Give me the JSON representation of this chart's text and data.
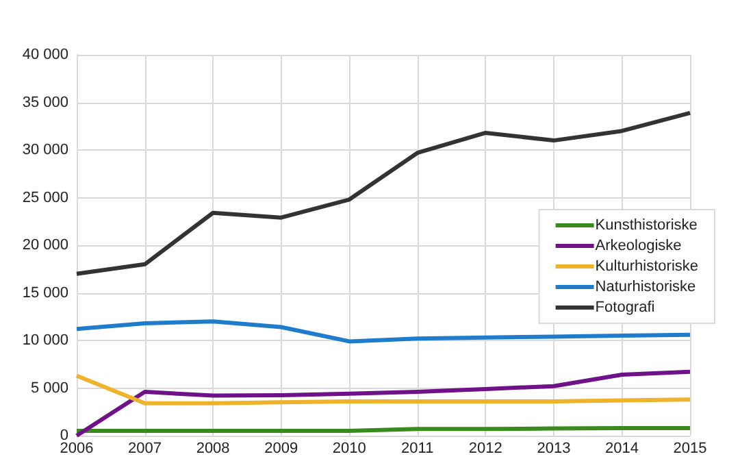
{
  "chart_data": {
    "type": "line",
    "categories": [
      "2006",
      "2007",
      "2008",
      "2009",
      "2010",
      "2011",
      "2012",
      "2013",
      "2014",
      "2015"
    ],
    "series": [
      {
        "name": "Kunsthistoriske",
        "color": "#3a8a1e",
        "values": [
          500,
          500,
          500,
          500,
          500,
          700,
          700,
          750,
          800,
          800
        ]
      },
      {
        "name": "Arkeologiske",
        "color": "#6f1289",
        "values": [
          0,
          4600,
          4200,
          4250,
          4400,
          4600,
          4900,
          5200,
          6400,
          6700
        ]
      },
      {
        "name": "Kulturhistoriske",
        "color": "#efb22b",
        "values": [
          6300,
          3400,
          3400,
          3500,
          3600,
          3600,
          3600,
          3600,
          3700,
          3800
        ]
      },
      {
        "name": "Naturhistoriske",
        "color": "#1f7ccc",
        "values": [
          11200,
          11800,
          12000,
          11400,
          9900,
          10200,
          10300,
          10400,
          10500,
          10600
        ]
      },
      {
        "name": "Fotografi",
        "color": "#333333",
        "values": [
          17000,
          18000,
          23400,
          22900,
          24800,
          29700,
          31800,
          31000,
          32000,
          33900
        ]
      }
    ],
    "ylim": [
      0,
      40000
    ],
    "yticks": [
      0,
      {
        "value": 5000,
        "label": "5 000"
      },
      {
        "value": 10000,
        "label": "10 000"
      },
      {
        "value": 15000,
        "label": "15 000"
      },
      {
        "value": 20000,
        "label": "20 000"
      },
      {
        "value": 25000,
        "label": "25 000"
      },
      {
        "value": 30000,
        "label": "30 000"
      },
      {
        "value": 35000,
        "label": "35 000"
      },
      {
        "value": 40000,
        "label": "40 000"
      }
    ],
    "grid": true,
    "legend": "right",
    "marker": "none",
    "line_style": "solid"
  }
}
